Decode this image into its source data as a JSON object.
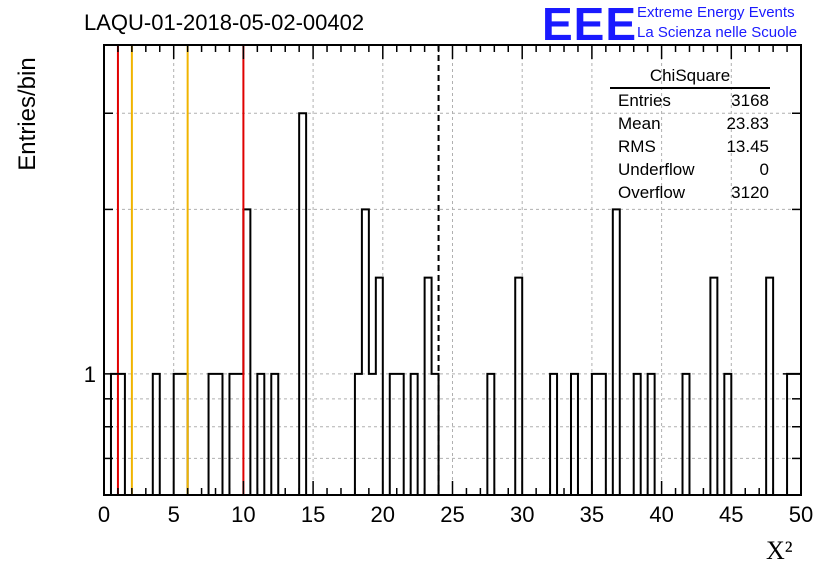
{
  "header": {
    "title": "LAQU-01-2018-05-02-00402",
    "logo_text": "EEE",
    "logo_line1": "Extreme Energy Events",
    "logo_line2": "La Scienza nelle Scuole",
    "logo_color": "#1a1aff"
  },
  "stats_box": {
    "name": "ChiSquare",
    "rows": [
      {
        "label": "Entries",
        "value": "3168"
      },
      {
        "label": "Mean",
        "value": "23.83"
      },
      {
        "label": "RMS",
        "value": "13.45"
      },
      {
        "label": "Underflow",
        "value": "0"
      },
      {
        "label": "Overflow",
        "value": "3120"
      }
    ]
  },
  "chart_data": {
    "type": "bar",
    "style": "step-histogram",
    "title": "LAQU-01-2018-05-02-00402",
    "xlabel": "X²",
    "ylabel": "Entries/bin",
    "xlim": [
      0,
      50
    ],
    "ylim_log": [
      0.6,
      4
    ],
    "y_scale": "log",
    "grid": true,
    "bin_width": 0.5,
    "x_tick_labels": [
      "0",
      "5",
      "10",
      "15",
      "20",
      "25",
      "30",
      "35",
      "40",
      "45",
      "50"
    ],
    "y_tick_labels": [
      "1"
    ],
    "bins": [
      {
        "x": 0.5,
        "count": 1
      },
      {
        "x": 1.0,
        "count": 1
      },
      {
        "x": 3.5,
        "count": 1
      },
      {
        "x": 5.0,
        "count": 1
      },
      {
        "x": 5.5,
        "count": 1
      },
      {
        "x": 7.5,
        "count": 1
      },
      {
        "x": 8.0,
        "count": 1
      },
      {
        "x": 9.0,
        "count": 1
      },
      {
        "x": 9.5,
        "count": 1
      },
      {
        "x": 10.0,
        "count": 2
      },
      {
        "x": 11.0,
        "count": 1
      },
      {
        "x": 12.0,
        "count": 1
      },
      {
        "x": 14.0,
        "count": 3
      },
      {
        "x": 18.0,
        "count": 1
      },
      {
        "x": 18.5,
        "count": 2
      },
      {
        "x": 19.0,
        "count": 1
      },
      {
        "x": 19.5,
        "count": 1.5
      },
      {
        "x": 20.5,
        "count": 1
      },
      {
        "x": 21.0,
        "count": 1
      },
      {
        "x": 22.0,
        "count": 1
      },
      {
        "x": 23.0,
        "count": 1.5
      },
      {
        "x": 23.5,
        "count": 1
      },
      {
        "x": 27.5,
        "count": 1
      },
      {
        "x": 29.5,
        "count": 1.5
      },
      {
        "x": 32.0,
        "count": 1
      },
      {
        "x": 33.5,
        "count": 1
      },
      {
        "x": 35.0,
        "count": 1
      },
      {
        "x": 35.5,
        "count": 1
      },
      {
        "x": 36.5,
        "count": 2
      },
      {
        "x": 38.0,
        "count": 1
      },
      {
        "x": 39.0,
        "count": 1
      },
      {
        "x": 41.5,
        "count": 1
      },
      {
        "x": 43.5,
        "count": 1.5
      },
      {
        "x": 44.5,
        "count": 1
      },
      {
        "x": 47.5,
        "count": 1.5
      },
      {
        "x": 49.0,
        "count": 1
      },
      {
        "x": 49.5,
        "count": 1
      }
    ],
    "vertical_lines": [
      {
        "x": 1.0,
        "color": "#e00000",
        "style": "solid"
      },
      {
        "x": 2.0,
        "color": "#f0b400",
        "style": "solid"
      },
      {
        "x": 6.0,
        "color": "#f0b400",
        "style": "solid"
      },
      {
        "x": 10.0,
        "color": "#e00000",
        "style": "solid"
      },
      {
        "x": 24.0,
        "color": "#000000",
        "style": "dashed"
      }
    ]
  }
}
